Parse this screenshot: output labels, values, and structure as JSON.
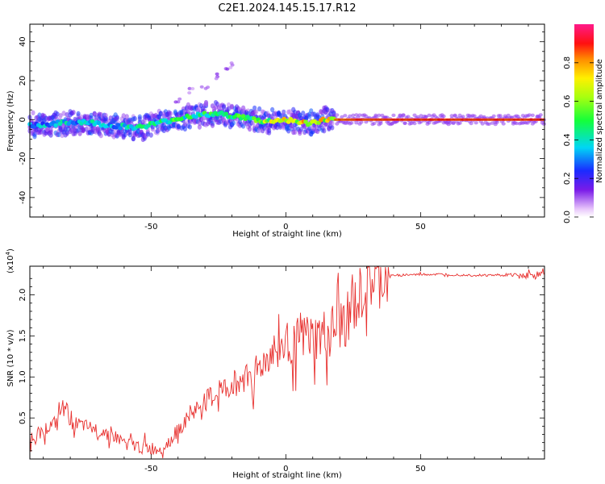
{
  "title": "C2E1.2024.145.15.17.R12",
  "chart_data": [
    {
      "type": "heatmap",
      "name": "spectrogram",
      "xlabel": "Height of straight line (km)",
      "ylabel": "Frequency (Hz)",
      "xlim": [
        -95,
        96
      ],
      "ylim": [
        -50,
        49
      ],
      "xticks": [
        -50,
        0,
        50
      ],
      "xtick_labels": [
        "-50",
        "0",
        "50"
      ],
      "yticks": [
        -40,
        -20,
        0,
        20,
        40
      ],
      "ytick_labels": [
        "-40",
        "-20",
        "0",
        "20",
        "40"
      ],
      "colorbar": {
        "label": "Normalized spectral amplitude",
        "range": [
          0.0,
          1.0
        ],
        "ticks": [
          0.0,
          0.2,
          0.4,
          0.6,
          0.8
        ],
        "tick_labels": [
          "0.0",
          "0.2",
          "0.4",
          "0.6",
          "0.8"
        ],
        "colormap": "rainbow (white-purple-blue-cyan-green-yellow-orange-red-magenta)"
      },
      "ridge": {
        "x": [
          -95,
          -85,
          -75,
          -65,
          -55,
          -45,
          -35,
          -25,
          -15,
          -8,
          0,
          8,
          15,
          25,
          50,
          96
        ],
        "freq": [
          -3,
          -2,
          -1,
          -3,
          -4,
          -1,
          2,
          3,
          1,
          -1,
          0,
          -2,
          0,
          0,
          0,
          0
        ],
        "amplitude": [
          0.4,
          0.45,
          0.45,
          0.45,
          0.5,
          0.55,
          0.6,
          0.65,
          0.6,
          0.75,
          0.8,
          0.85,
          0.85,
          0.9,
          0.9,
          0.9
        ]
      },
      "scatter_feature": {
        "x": [
          -40,
          -35,
          -30,
          -25,
          -22,
          -20
        ],
        "freq": [
          10,
          15,
          17,
          22,
          26,
          28
        ]
      }
    },
    {
      "type": "line",
      "name": "snr",
      "xlabel": "Height of straight line (km)",
      "ylabel": "SNR (10 * v/v)",
      "y_multiplier_label": "(x10",
      "y_multiplier_exp": "4",
      "y_multiplier_close": ")",
      "xlim": [
        -95,
        96
      ],
      "ylim": [
        0.0,
        2.35
      ],
      "xticks": [
        -50,
        0,
        50
      ],
      "xtick_labels": [
        "-50",
        "0",
        "50"
      ],
      "yticks": [
        0.5,
        1.0,
        1.5,
        2.0
      ],
      "ytick_labels": [
        "0.5",
        "1.0",
        "1.5",
        "2.0"
      ],
      "line_color": "#e8312f",
      "series": [
        {
          "x": [
            -95,
            -90,
            -85,
            -82,
            -80,
            -75,
            -70,
            -65,
            -60,
            -55,
            -50,
            -45,
            -40,
            -35,
            -30,
            -25,
            -20,
            -15,
            -10,
            -5,
            0,
            5,
            10,
            15,
            20,
            25,
            30,
            35,
            40,
            50,
            60,
            70,
            80,
            90,
            96
          ],
          "y": [
            0.25,
            0.35,
            0.45,
            0.7,
            0.45,
            0.4,
            0.35,
            0.3,
            0.2,
            0.15,
            0.12,
            0.15,
            0.35,
            0.55,
            0.7,
            0.8,
            0.9,
            1.0,
            1.1,
            1.3,
            1.4,
            1.45,
            1.45,
            1.5,
            1.6,
            1.8,
            2.1,
            2.2,
            2.24,
            2.25,
            2.25,
            2.24,
            2.24,
            2.24,
            2.25
          ]
        }
      ]
    }
  ]
}
